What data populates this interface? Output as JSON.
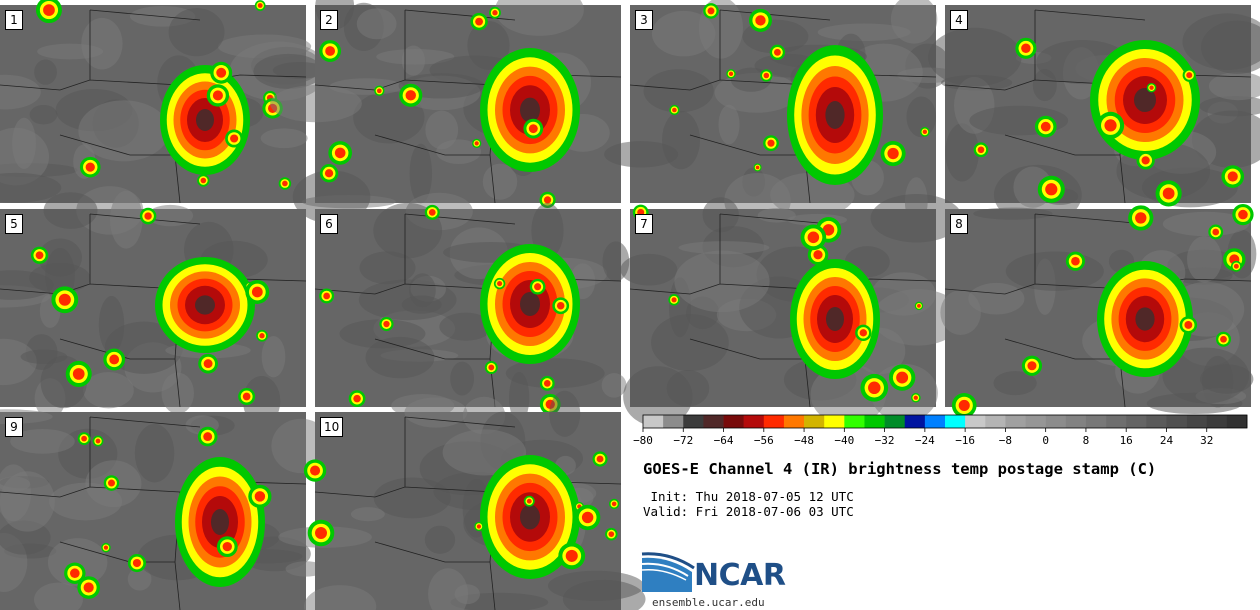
{
  "panels": [
    {
      "label": "1"
    },
    {
      "label": "2"
    },
    {
      "label": "3"
    },
    {
      "label": "4"
    },
    {
      "label": "5"
    },
    {
      "label": "6"
    },
    {
      "label": "7"
    },
    {
      "label": "8"
    },
    {
      "label": "9"
    },
    {
      "label": "10"
    }
  ],
  "colorbar": {
    "tick_labels": [
      "−80",
      "−72",
      "−64",
      "−56",
      "−48",
      "−40",
      "−32",
      "−24",
      "−16",
      "−8",
      "0",
      "8",
      "16",
      "24",
      "32"
    ],
    "colors": [
      "#c8c8c8",
      "#8c8c8c",
      "#3c3c3c",
      "#502828",
      "#780a0a",
      "#b40a0a",
      "#ff2a00",
      "#ff7800",
      "#d2b400",
      "#ffff00",
      "#32ff00",
      "#00c800",
      "#008c28",
      "#0014a0",
      "#0080ff",
      "#00ffff",
      "#c8c8c8",
      "#b4b4b4",
      "#a0a0a0",
      "#969696",
      "#8c8c8c",
      "#828282",
      "#787878",
      "#6e6e6e",
      "#646464",
      "#5a5a5a",
      "#505050",
      "#464646",
      "#3c3c3c",
      "#323232"
    ]
  },
  "header": {
    "title": "GOES-E Channel 4 (IR) brightness temp postage stamp (C)",
    "init": " Init: Thu 2018-07-05 12 UTC",
    "valid": "Valid: Fri 2018-07-06 03 UTC"
  },
  "brand": {
    "logo_text": "NCAR",
    "url": "ensemble.ucar.edu"
  }
}
